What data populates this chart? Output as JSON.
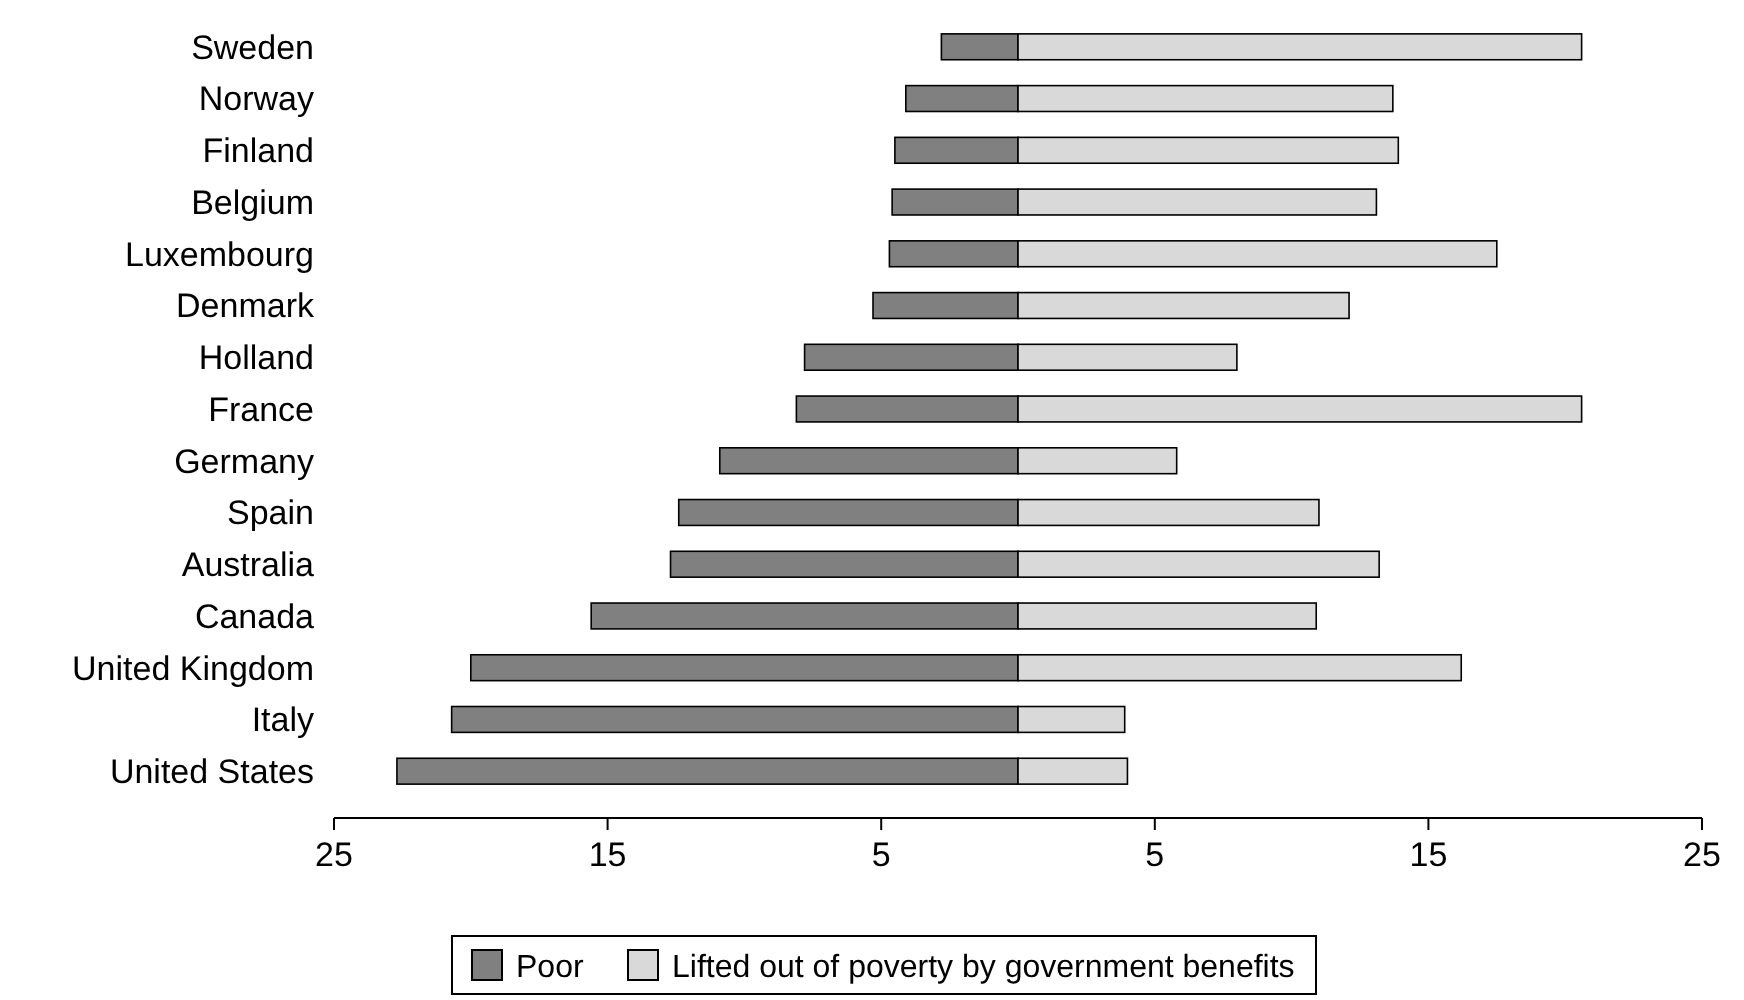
{
  "chart_data": {
    "type": "bar",
    "orientation": "horizontal",
    "stacked": true,
    "categories": [
      "Sweden",
      "Norway",
      "Finland",
      "Belgium",
      "Luxembourg",
      "Denmark",
      "Holland",
      "France",
      "Germany",
      "Spain",
      "Australia",
      "Canada",
      "United Kingdom",
      "Italy",
      "United States"
    ],
    "series": [
      {
        "name": "Poor",
        "color": "#808080",
        "values": [
          -2.8,
          -4.1,
          -4.5,
          -4.6,
          -4.7,
          -5.3,
          -7.8,
          -8.1,
          -10.9,
          -12.4,
          -12.7,
          -15.6,
          -20,
          -20.7,
          -22.7
        ]
      },
      {
        "name": "Lifted out of poverty by government benefits",
        "color": "#d9d9d9",
        "values": [
          20.6,
          13.7,
          13.9,
          13.1,
          17.5,
          12.1,
          8,
          20.6,
          5.8,
          11,
          13.2,
          10.9,
          16.2,
          3.9,
          4
        ]
      }
    ],
    "xlim": [
      -25,
      25
    ],
    "xticks": [
      {
        "value": -25,
        "label": "25"
      },
      {
        "value": -15,
        "label": "15"
      },
      {
        "value": -5,
        "label": "5"
      },
      {
        "value": 5,
        "label": "5"
      },
      {
        "value": 15,
        "label": "15"
      },
      {
        "value": 25,
        "label": "25"
      }
    ],
    "legend": "bottom",
    "grid": false
  }
}
